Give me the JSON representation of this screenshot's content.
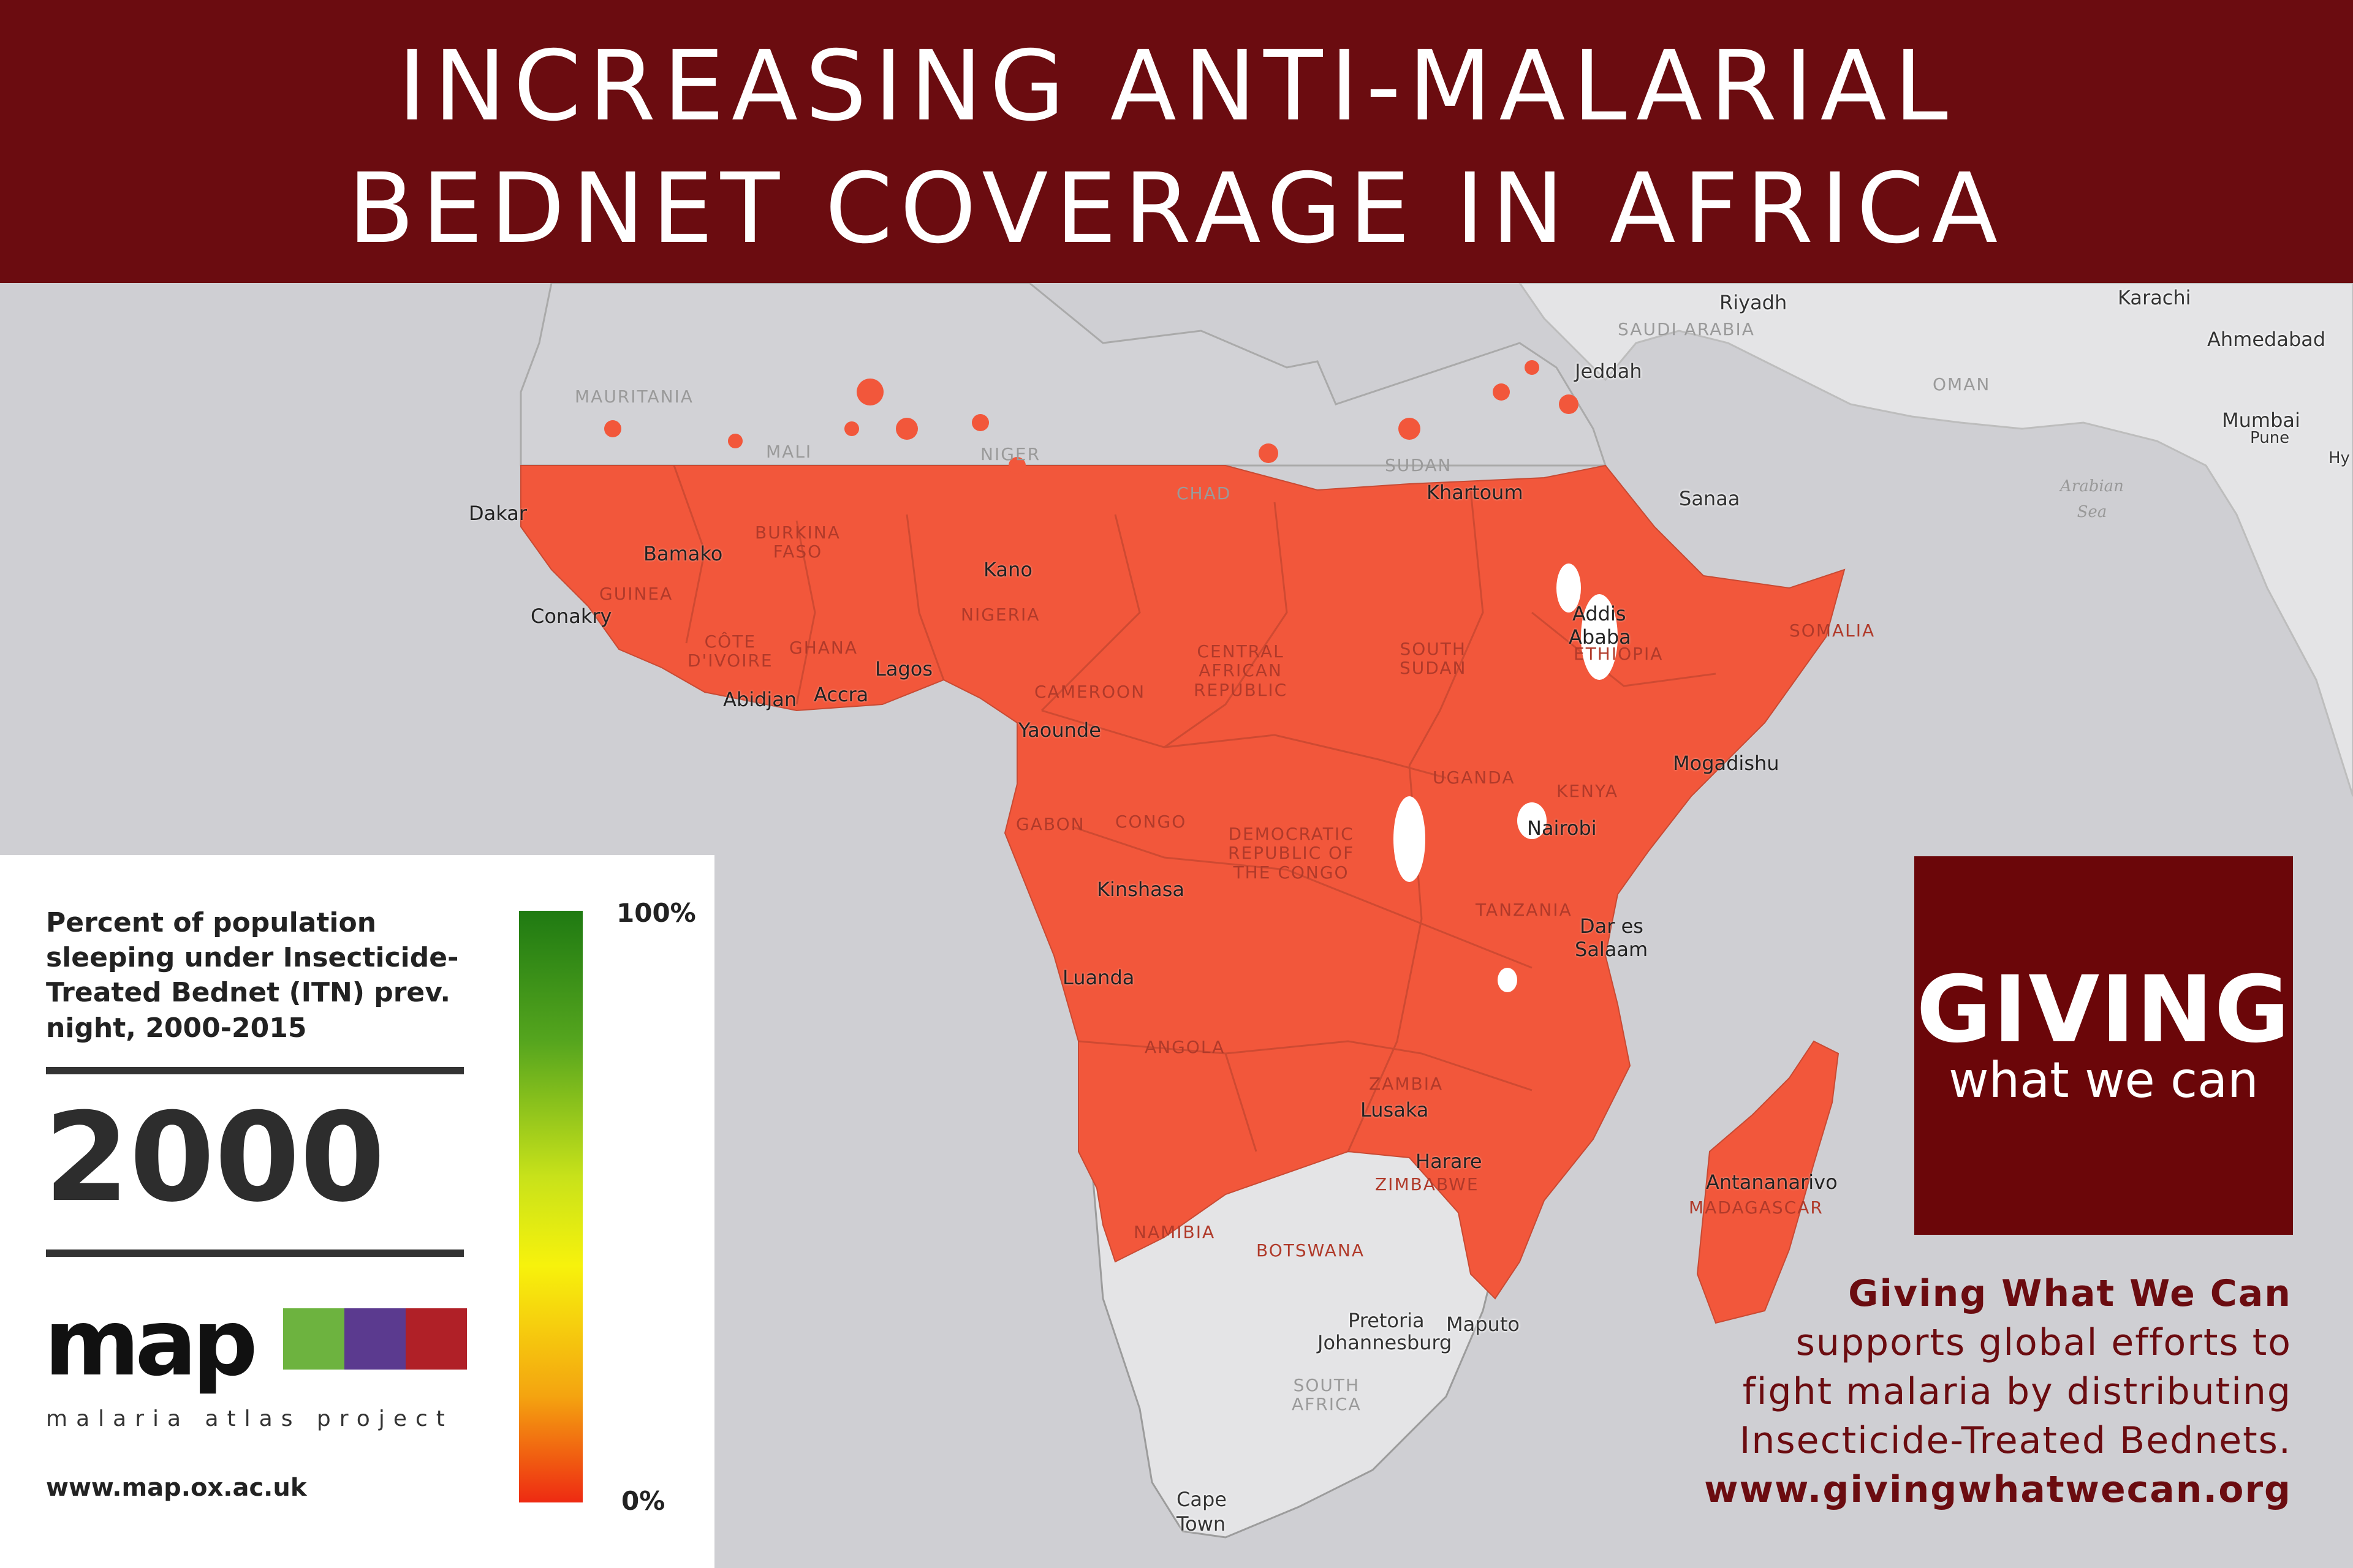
{
  "banner": {
    "title_line1": "INCREASING ANTI-MALARIAL",
    "title_line2": "BEDNET COVERAGE IN AFRICA"
  },
  "colors": {
    "banner": "#6b0c10",
    "sea": "#cfcfd3",
    "land": "#e4e4e6",
    "coverage_fill": "#f2573b",
    "border": "#8e8e8e"
  },
  "cities": [
    {
      "name": "Riyadh"
    },
    {
      "name": "Karachi"
    },
    {
      "name": "Ahmedabad"
    },
    {
      "name": "Jeddah"
    },
    {
      "name": "Mumbai"
    },
    {
      "name": "Pune"
    },
    {
      "name": "Hy"
    },
    {
      "name": "Sanaa"
    },
    {
      "name": "Dakar"
    },
    {
      "name": "Bamako"
    },
    {
      "name": "Kano"
    },
    {
      "name": "Khartoum"
    },
    {
      "name": "Conakry"
    },
    {
      "name": "Addis"
    },
    {
      "name": "Ababa"
    },
    {
      "name": "Lagos"
    },
    {
      "name": "Abidjan"
    },
    {
      "name": "Accra"
    },
    {
      "name": "Yaounde"
    },
    {
      "name": "Mogadishu"
    },
    {
      "name": "Nairobi"
    },
    {
      "name": "Kinshasa"
    },
    {
      "name": "Dar es"
    },
    {
      "name": "Salaam"
    },
    {
      "name": "Luanda"
    },
    {
      "name": "Lusaka"
    },
    {
      "name": "Harare"
    },
    {
      "name": "Antananarivo"
    },
    {
      "name": "Pretoria"
    },
    {
      "name": "Maputo"
    },
    {
      "name": "Johannesburg"
    },
    {
      "name": "Cape"
    },
    {
      "name": "Town"
    }
  ],
  "countries": [
    {
      "name": "SAUDI ARABIA"
    },
    {
      "name": "MAURITANIA"
    },
    {
      "name": "OMAN"
    },
    {
      "name": "MALI"
    },
    {
      "name": "NIGER"
    },
    {
      "name": "CHAD"
    },
    {
      "name": "SUDAN"
    },
    {
      "name": "BURKINA\nFASO"
    },
    {
      "name": "GUINEA"
    },
    {
      "name": "NIGERIA"
    },
    {
      "name": "CÔTE\nD'IVOIRE"
    },
    {
      "name": "GHANA"
    },
    {
      "name": "CENTRAL\nAFRICAN\nREPUBLIC"
    },
    {
      "name": "SOUTH\nSUDAN"
    },
    {
      "name": "ETHIOPIA"
    },
    {
      "name": "SOMALIA"
    },
    {
      "name": "CAMEROON"
    },
    {
      "name": "UGANDA"
    },
    {
      "name": "KENYA"
    },
    {
      "name": "GABON"
    },
    {
      "name": "CONGO"
    },
    {
      "name": "DEMOCRATIC\nREPUBLIC OF\nTHE CONGO"
    },
    {
      "name": "TANZANIA"
    },
    {
      "name": "ANGOLA"
    },
    {
      "name": "ZAMBIA"
    },
    {
      "name": "ZIMBABWE"
    },
    {
      "name": "MADAGASCAR"
    },
    {
      "name": "NAMIBIA"
    },
    {
      "name": "BOTSWANA"
    },
    {
      "name": "SOUTH\nAFRICA"
    }
  ],
  "seas": [
    {
      "name": "Arabian\nSea"
    }
  ],
  "legend": {
    "title_lines": [
      "Percent of population",
      "sleeping under Insecticide-",
      "Treated Bednet (ITN) prev.",
      "night, 2000-2015"
    ],
    "year": "2000",
    "scale_max": "100%",
    "scale_min": "0%",
    "wordmark": "map",
    "project_name": "malaria atlas project",
    "url": "www.map.ox.ac.uk",
    "gradient": [
      "#1f7a12",
      "#55a51e",
      "#c8e21a",
      "#f7f20c",
      "#f4a410",
      "#ee2a12"
    ],
    "logo_box_colors": [
      "#6db33f",
      "#5b3a8f",
      "#b02027"
    ]
  },
  "gwwc": {
    "logo_main": "GIVING",
    "logo_sub": "what we can",
    "text_head": "Giving What We Can",
    "text_lines": [
      "supports  global efforts to",
      "fight malaria by distributing",
      "Insecticide-Treated Bednets."
    ],
    "url": "www.givingwhatwecan.org"
  }
}
